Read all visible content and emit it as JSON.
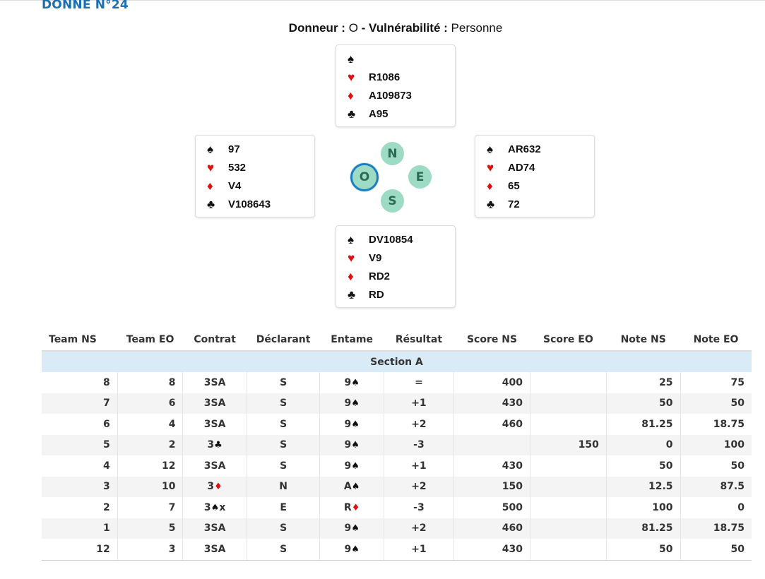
{
  "deal": {
    "title": "DONNE N°24",
    "dealer_label": "Donneur :",
    "dealer_value": "O",
    "sep": " - ",
    "vuln_label": "Vulnérabilité :",
    "vuln_value": "Personne"
  },
  "suits": {
    "spade": "♠",
    "heart": "♥",
    "diamond": "♦",
    "club": "♣"
  },
  "colors": {
    "accent": "#1b6fb0",
    "compass": "#9ddbc4",
    "active_ring": "#1e7fc0",
    "red_suit": "#e01010",
    "section_bg": "#d9ebf7"
  },
  "hands": {
    "north": {
      "spades": "",
      "hearts": "R1086",
      "diamonds": "A109873",
      "clubs": "A95"
    },
    "west": {
      "spades": "97",
      "hearts": "532",
      "diamonds": "V4",
      "clubs": "V108643"
    },
    "east": {
      "spades": "AR632",
      "hearts": "AD74",
      "diamonds": "65",
      "clubs": "72"
    },
    "south": {
      "spades": "DV10854",
      "hearts": "V9",
      "diamonds": "RD2",
      "clubs": "RD"
    }
  },
  "compass": {
    "n": "N",
    "s": "S",
    "e": "E",
    "o": "O",
    "active": "O"
  },
  "table": {
    "headers": [
      "Team NS",
      "Team EO",
      "Contrat",
      "Déclarant",
      "Entame",
      "Résultat",
      "Score NS",
      "Score EO",
      "Note NS",
      "Note EO"
    ],
    "section": "Section A",
    "rows": [
      {
        "ns": "8",
        "eo": "8",
        "contract": "3SA",
        "contract_suit": "",
        "contract_suffix": "",
        "declarer": "S",
        "lead_rank": "9",
        "lead_suit": "♠",
        "lead_red": false,
        "result": "=",
        "score_ns": "400",
        "score_eo": "",
        "note_ns": "25",
        "note_eo": "75"
      },
      {
        "ns": "7",
        "eo": "6",
        "contract": "3SA",
        "contract_suit": "",
        "contract_suffix": "",
        "declarer": "S",
        "lead_rank": "9",
        "lead_suit": "♠",
        "lead_red": false,
        "result": "+1",
        "score_ns": "430",
        "score_eo": "",
        "note_ns": "50",
        "note_eo": "50"
      },
      {
        "ns": "6",
        "eo": "4",
        "contract": "3SA",
        "contract_suit": "",
        "contract_suffix": "",
        "declarer": "S",
        "lead_rank": "9",
        "lead_suit": "♠",
        "lead_red": false,
        "result": "+2",
        "score_ns": "460",
        "score_eo": "",
        "note_ns": "81.25",
        "note_eo": "18.75"
      },
      {
        "ns": "5",
        "eo": "2",
        "contract": "3",
        "contract_suit": "♣",
        "contract_suffix": "",
        "declarer": "S",
        "lead_rank": "9",
        "lead_suit": "♠",
        "lead_red": false,
        "result": "-3",
        "score_ns": "",
        "score_eo": "150",
        "note_ns": "0",
        "note_eo": "100"
      },
      {
        "ns": "4",
        "eo": "12",
        "contract": "3SA",
        "contract_suit": "",
        "contract_suffix": "",
        "declarer": "S",
        "lead_rank": "9",
        "lead_suit": "♠",
        "lead_red": false,
        "result": "+1",
        "score_ns": "430",
        "score_eo": "",
        "note_ns": "50",
        "note_eo": "50"
      },
      {
        "ns": "3",
        "eo": "10",
        "contract": "3",
        "contract_suit": "♦",
        "contract_suffix": "",
        "declarer": "N",
        "lead_rank": "A",
        "lead_suit": "♠",
        "lead_red": false,
        "result": "+2",
        "score_ns": "150",
        "score_eo": "",
        "note_ns": "12.5",
        "note_eo": "87.5"
      },
      {
        "ns": "2",
        "eo": "7",
        "contract": "3",
        "contract_suit": "♠",
        "contract_suffix": "x",
        "declarer": "E",
        "lead_rank": "R",
        "lead_suit": "♦",
        "lead_red": true,
        "result": "-3",
        "score_ns": "500",
        "score_eo": "",
        "note_ns": "100",
        "note_eo": "0"
      },
      {
        "ns": "1",
        "eo": "5",
        "contract": "3SA",
        "contract_suit": "",
        "contract_suffix": "",
        "declarer": "S",
        "lead_rank": "9",
        "lead_suit": "♠",
        "lead_red": false,
        "result": "+2",
        "score_ns": "460",
        "score_eo": "",
        "note_ns": "81.25",
        "note_eo": "18.75"
      },
      {
        "ns": "12",
        "eo": "3",
        "contract": "3SA",
        "contract_suit": "",
        "contract_suffix": "",
        "declarer": "S",
        "lead_rank": "9",
        "lead_suit": "♠",
        "lead_red": false,
        "result": "+1",
        "score_ns": "430",
        "score_eo": "",
        "note_ns": "50",
        "note_eo": "50"
      }
    ]
  }
}
